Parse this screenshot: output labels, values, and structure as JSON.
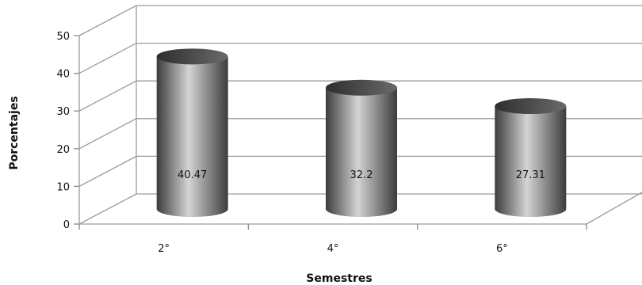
{
  "chart_data": {
    "type": "bar",
    "style": "3d-cylinder",
    "categories": [
      "2°",
      "4°",
      "6°"
    ],
    "values": [
      40.47,
      32.2,
      27.31
    ],
    "data_labels": [
      "40.47",
      "32.2",
      "27.31"
    ],
    "xlabel": "Semestres",
    "ylabel": "Porcentajes",
    "ylim": [
      0,
      50
    ],
    "yticks": [
      "0",
      "10",
      "20",
      "30",
      "40",
      "50"
    ],
    "grid": true,
    "legend": "none",
    "colors": {
      "bar_dark": "#3c3c3c",
      "bar_light": "#d4d4d4",
      "grid": "#9a9a9a"
    }
  }
}
